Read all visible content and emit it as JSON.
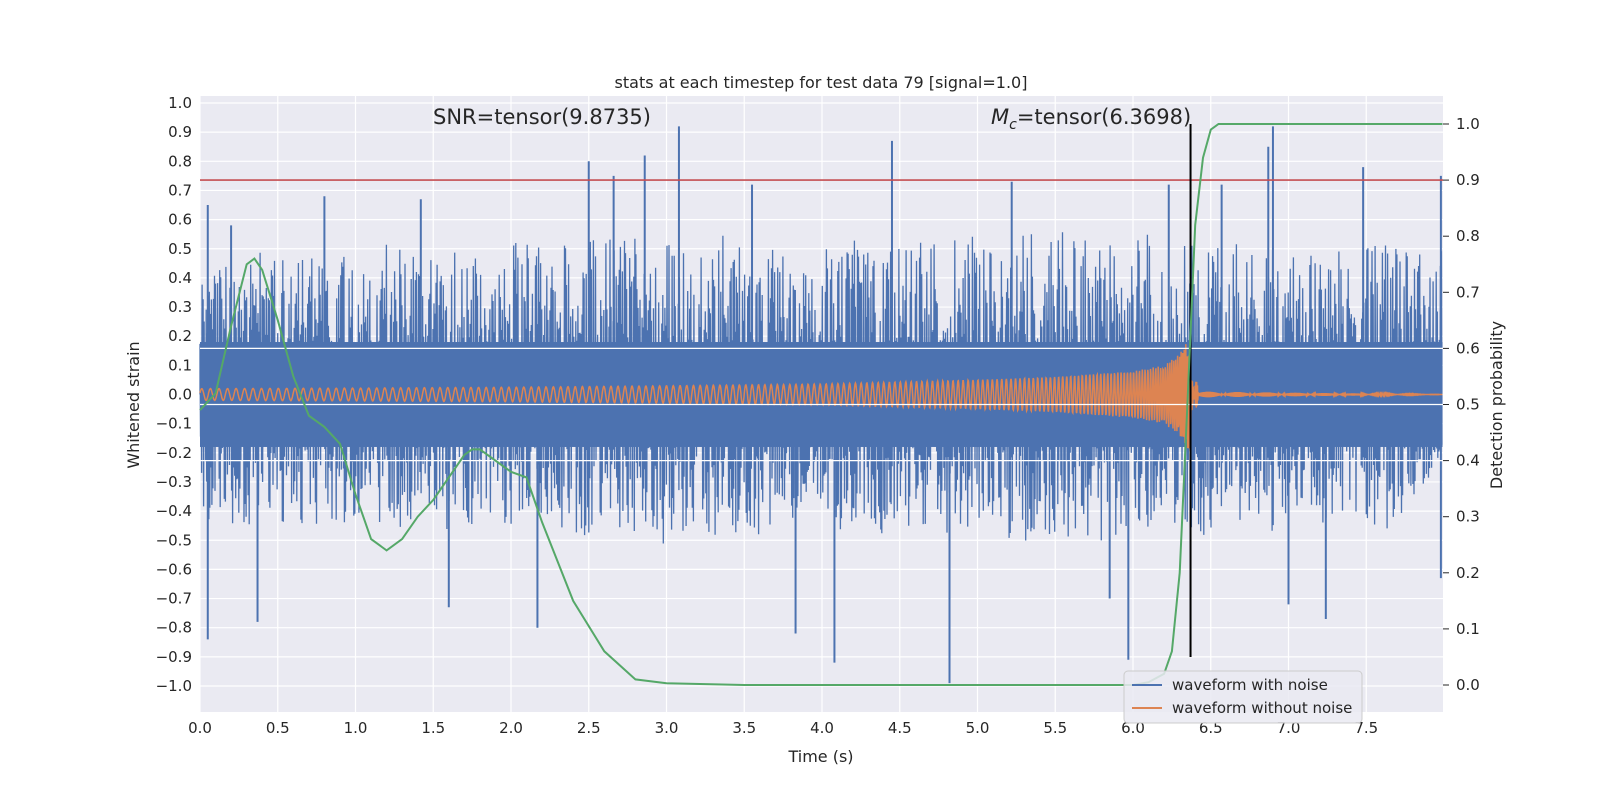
{
  "chart_data": {
    "type": "line",
    "title": "stats at each timestep for test data 79 [signal=1.0]",
    "xlabel": "Time (s)",
    "ylabel": "Whitened strain",
    "y2label": "Detection probability",
    "xlim": [
      0.0,
      8.0
    ],
    "ylim": [
      -1.1,
      1.1
    ],
    "y2lim": [
      -0.05,
      1.05
    ],
    "xticks": [
      "0.0",
      "0.5",
      "1.0",
      "1.5",
      "2.0",
      "2.5",
      "3.0",
      "3.5",
      "4.0",
      "4.5",
      "5.0",
      "5.5",
      "6.0",
      "6.5",
      "7.0",
      "7.5"
    ],
    "yticks": [
      "1.0",
      "0.9",
      "0.8",
      "0.7",
      "0.6",
      "0.5",
      "0.4",
      "0.3",
      "0.2",
      "0.1",
      "0.0",
      "−0.1",
      "−0.2",
      "−0.3",
      "−0.4",
      "−0.5",
      "−0.6",
      "−0.7",
      "−0.8",
      "−0.9",
      "−1.0"
    ],
    "y2ticks": [
      "1.0",
      "0.9",
      "0.8",
      "0.7",
      "0.6",
      "0.5",
      "0.4",
      "0.3",
      "0.2",
      "0.1",
      "0.0"
    ],
    "grid": true,
    "legend_position": "lower-right",
    "annotations": {
      "snr": "SNR=tensor(9.8735)",
      "mc_symbol": "M",
      "mc_sub": "c",
      "mc_rest": "=tensor(6.3698)"
    },
    "threshold": {
      "value": 0.9,
      "axis": "right",
      "color": "#c44e52"
    },
    "merger_time": 6.37,
    "noise_envelope": {
      "x": [
        0.0,
        1.0,
        2.0,
        3.0,
        4.0,
        5.0,
        6.0,
        7.0,
        7.99
      ],
      "upper": [
        0.45,
        0.5,
        0.52,
        0.55,
        0.52,
        0.55,
        0.55,
        0.52,
        0.5
      ],
      "lower": [
        -0.45,
        -0.45,
        -0.45,
        -0.5,
        -0.45,
        -0.5,
        -0.5,
        -0.45,
        -0.45
      ],
      "spikes": [
        {
          "x": 0.05,
          "y": -0.84
        },
        {
          "x": 0.05,
          "y": 0.65
        },
        {
          "x": 0.2,
          "y": 0.58
        },
        {
          "x": 0.37,
          "y": -0.78
        },
        {
          "x": 0.8,
          "y": 0.68
        },
        {
          "x": 1.42,
          "y": 0.67
        },
        {
          "x": 1.6,
          "y": -0.73
        },
        {
          "x": 2.17,
          "y": -0.8
        },
        {
          "x": 2.5,
          "y": 0.8
        },
        {
          "x": 2.66,
          "y": 0.75
        },
        {
          "x": 2.86,
          "y": 0.82
        },
        {
          "x": 3.08,
          "y": 0.92
        },
        {
          "x": 3.55,
          "y": 0.72
        },
        {
          "x": 3.83,
          "y": -0.82
        },
        {
          "x": 4.08,
          "y": -0.92
        },
        {
          "x": 4.45,
          "y": 0.87
        },
        {
          "x": 4.82,
          "y": -0.99
        },
        {
          "x": 5.22,
          "y": 0.73
        },
        {
          "x": 5.85,
          "y": -0.7
        },
        {
          "x": 5.97,
          "y": -0.91
        },
        {
          "x": 6.23,
          "y": 0.72
        },
        {
          "x": 6.57,
          "y": 0.72
        },
        {
          "x": 6.9,
          "y": 0.92
        },
        {
          "x": 6.87,
          "y": 0.85
        },
        {
          "x": 7.0,
          "y": -0.72
        },
        {
          "x": 7.24,
          "y": -0.77
        },
        {
          "x": 7.48,
          "y": 0.78
        },
        {
          "x": 7.98,
          "y": 0.75
        },
        {
          "x": 7.98,
          "y": -0.63
        }
      ]
    },
    "series": [
      {
        "name": "waveform with noise",
        "color": "#4c72b0",
        "axis": "left",
        "description_values": "dense noise, mostly within ±0.5"
      },
      {
        "name": "waveform without noise",
        "color": "#dd8452",
        "axis": "left",
        "envelope": {
          "x": [
            0.0,
            1.0,
            2.0,
            3.0,
            4.0,
            5.0,
            5.5,
            6.0,
            6.2,
            6.3,
            6.37,
            6.4,
            6.42,
            8.0
          ],
          "amplitude": [
            0.02,
            0.022,
            0.025,
            0.03,
            0.036,
            0.05,
            0.06,
            0.08,
            0.1,
            0.14,
            0.2,
            0.3,
            0.01,
            0.0
          ]
        }
      },
      {
        "name": "detection probability",
        "color": "#55a868",
        "axis": "right",
        "x": [
          0.0,
          0.1,
          0.2,
          0.3,
          0.35,
          0.4,
          0.5,
          0.6,
          0.7,
          0.8,
          0.9,
          1.0,
          1.1,
          1.2,
          1.3,
          1.4,
          1.5,
          1.6,
          1.7,
          1.75,
          1.8,
          1.9,
          2.0,
          2.1,
          2.2,
          2.4,
          2.6,
          2.8,
          3.0,
          3.5,
          4.0,
          5.0,
          6.0,
          6.1,
          6.2,
          6.25,
          6.3,
          6.35,
          6.4,
          6.45,
          6.5,
          6.55,
          6.6,
          7.0,
          8.0
        ],
        "values": [
          0.49,
          0.52,
          0.64,
          0.75,
          0.76,
          0.74,
          0.65,
          0.55,
          0.48,
          0.46,
          0.43,
          0.34,
          0.26,
          0.24,
          0.26,
          0.3,
          0.33,
          0.37,
          0.41,
          0.42,
          0.42,
          0.4,
          0.38,
          0.37,
          0.29,
          0.15,
          0.06,
          0.01,
          0.003,
          0.0,
          0.0,
          0.0,
          0.0,
          0.005,
          0.02,
          0.06,
          0.2,
          0.5,
          0.82,
          0.94,
          0.99,
          1.0,
          1.0,
          1.0,
          1.0
        ]
      }
    ]
  }
}
